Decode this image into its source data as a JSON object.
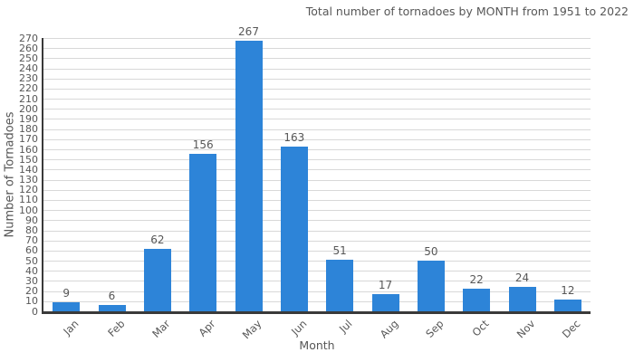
{
  "chart_data": {
    "type": "bar",
    "title": "Total number of tornadoes by MONTH from 1951 to 2022",
    "xlabel": "Month",
    "ylabel": "Number of Tornadoes",
    "categories": [
      "Jan",
      "Feb",
      "Mar",
      "Apr",
      "May",
      "Jun",
      "Jul",
      "Aug",
      "Sep",
      "Oct",
      "Nov",
      "Dec"
    ],
    "values": [
      9,
      6,
      62,
      156,
      267,
      163,
      51,
      17,
      50,
      22,
      24,
      12
    ],
    "ylim": [
      0,
      270
    ],
    "ytick_step": 10,
    "grid": "horizontal",
    "legend_position": "none",
    "value_labels_shown": true,
    "colors": {
      "bar": "#2d84d8",
      "axis": "#3a3a3a",
      "gridline": "#d8d8d8",
      "text": "#575757",
      "background": "#ffffff"
    }
  }
}
